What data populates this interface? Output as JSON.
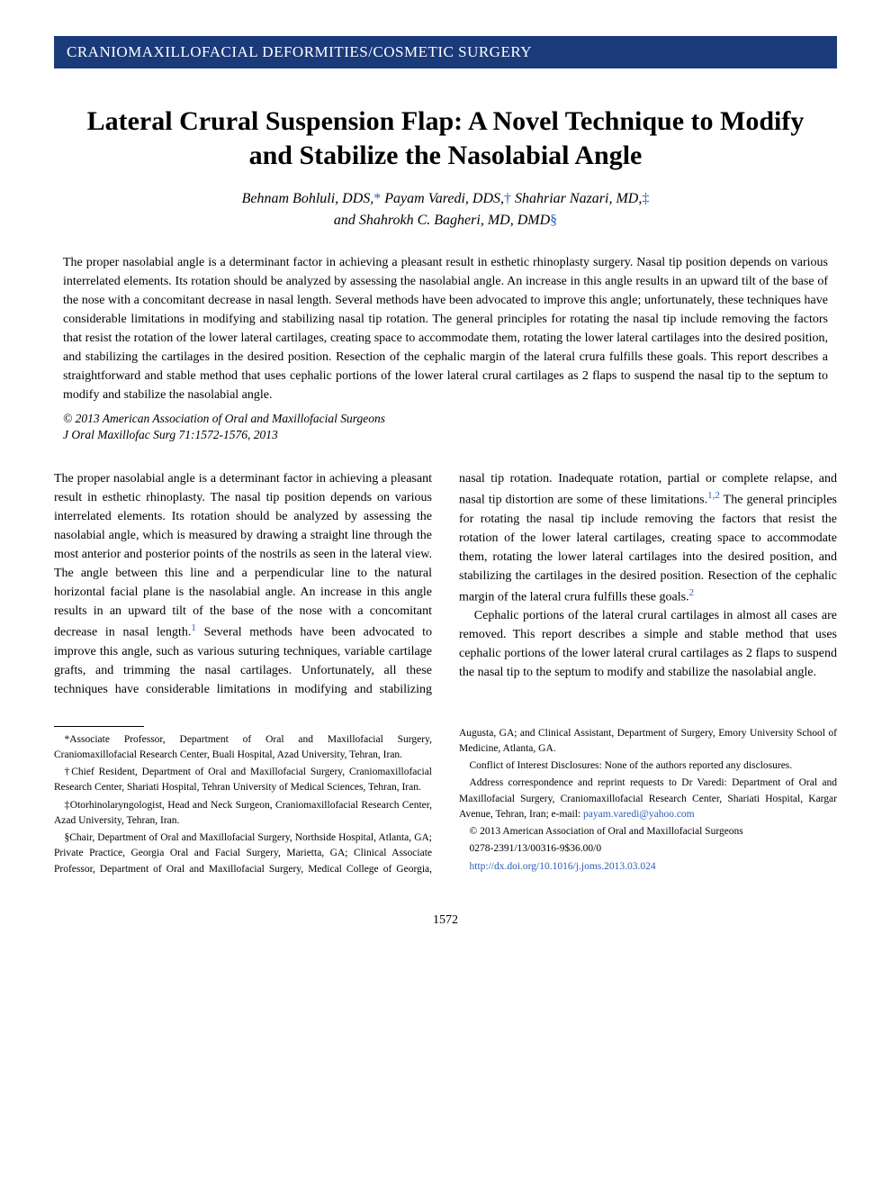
{
  "section_header": "CRANIOMAXILLOFACIAL DEFORMITIES/COSMETIC SURGERY",
  "title": "Lateral Crural Suspension Flap: A Novel Technique to Modify and Stabilize the Nasolabial Angle",
  "authors_line1": "Behnam Bohluli, DDS,",
  "authors_sym1": "*",
  "authors_line1b": " Payam Varedi, DDS,",
  "authors_sym2": "†",
  "authors_line1c": " Shahriar Nazari, MD,",
  "authors_sym3": "‡",
  "authors_line2": "and Shahrokh C. Bagheri, MD, DMD",
  "authors_sym4": "§",
  "abstract": "The proper nasolabial angle is a determinant factor in achieving a pleasant result in esthetic rhinoplasty surgery. Nasal tip position depends on various interrelated elements. Its rotation should be analyzed by assessing the nasolabial angle. An increase in this angle results in an upward tilt of the base of the nose with a concomitant decrease in nasal length. Several methods have been advocated to improve this angle; unfortunately, these techniques have considerable limitations in modifying and stabilizing nasal tip rotation. The general principles for rotating the nasal tip include removing the factors that resist the rotation of the lower lateral cartilages, creating space to accommodate them, rotating the lower lateral cartilages into the desired position, and stabilizing the cartilages in the desired position. Resection of the cephalic margin of the lateral crura fulfills these goals. This report describes a straightforward and stable method that uses cephalic portions of the lower lateral crural cartilages as 2 flaps to suspend the nasal tip to the septum to modify and stabilize the nasolabial angle.",
  "copyright": "© 2013 American Association of Oral and Maxillofacial Surgeons",
  "citation": "J Oral Maxillofac Surg 71:1572-1576, 2013",
  "body_p1a": "The proper nasolabial angle is a determinant factor in achieving a pleasant result in esthetic rhinoplasty. The nasal tip position depends on various interrelated elements. Its rotation should be analyzed by assessing the nasolabial angle, which is measured by drawing a straight line through the most anterior and posterior points of the nostrils as seen in the lateral view. The angle between this line and a perpendicular line to the natural horizontal facial plane is the nasolabial angle. An increase in this angle results in an upward tilt of the base of the nose with a concomitant decrease in nasal length.",
  "body_ref1": "1",
  "body_p1b": " Several methods have been advocated to improve this angle, such as various suturing techniques, variable cartilage grafts, and trimming the nasal cartilages. Unfortunately, all these techniques have considerable limitations in modifying and stabilizing nasal tip rotation. Inadequate rotation, partial or complete relapse, and nasal tip distortion are some of these limitations.",
  "body_ref2": "1,2",
  "body_p1c": " The general principles for rotating the nasal tip include removing the factors that resist the rotation of the lower lateral cartilages, creating space to accommodate them, rotating the lower lateral cartilages into the desired position, and stabilizing the cartilages in the desired position. Resection of the cephalic margin of the lateral crura fulfills these goals.",
  "body_ref3": "2",
  "body_p2": "Cephalic portions of the lateral crural cartilages in almost all cases are removed. This report describes a simple and stable method that uses cephalic portions of the lower lateral crural cartilages as 2 flaps to suspend the nasal tip to the septum to modify and stabilize the nasolabial angle.",
  "footnotes": {
    "f1": "*Associate Professor, Department of Oral and Maxillofacial Surgery, Craniomaxillofacial Research Center, Buali Hospital, Azad University, Tehran, Iran.",
    "f2": "†Chief Resident, Department of Oral and Maxillofacial Surgery, Craniomaxillofacial Research Center, Shariati Hospital, Tehran University of Medical Sciences, Tehran, Iran.",
    "f3": "‡Otorhinolaryngologist, Head and Neck Surgeon, Craniomaxillofacial Research Center, Azad University, Tehran, Iran.",
    "f4": "§Chair, Department of Oral and Maxillofacial Surgery, Northside Hospital, Atlanta, GA; Private Practice, Georgia Oral and Facial Surgery, Marietta, GA; Clinical Associate Professor, Department of Oral and Maxillofacial Surgery, Medical College of Georgia, Augusta, GA; and Clinical Assistant, Department of Surgery, Emory University School of Medicine, Atlanta, GA.",
    "f5": "Conflict of Interest Disclosures: None of the authors reported any disclosures.",
    "f6a": "Address correspondence and reprint requests to Dr Varedi: Department of Oral and Maxillofacial Surgery, Craniomaxillofacial Research Center, Shariati Hospital, Kargar Avenue, Tehran, Iran; e-mail: ",
    "f6_email": "payam.varedi@yahoo.com",
    "f7": "© 2013 American Association of Oral and Maxillofacial Surgeons",
    "f8": "0278-2391/13/00316-9$36.00/0",
    "f9": "http://dx.doi.org/10.1016/j.joms.2013.03.024"
  },
  "page_number": "1572",
  "colors": {
    "header_bg": "#1a3a7a",
    "link": "#2b5cb8",
    "text": "#000000",
    "bg": "#ffffff"
  }
}
